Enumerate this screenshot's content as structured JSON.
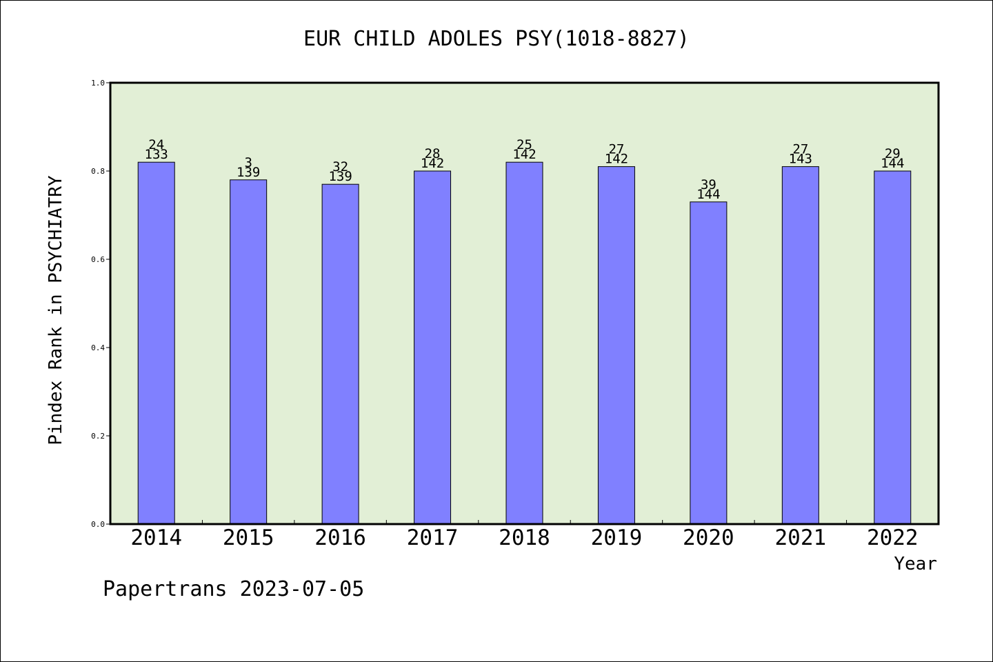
{
  "chart_data": {
    "type": "bar",
    "title": "EUR CHILD ADOLES PSY(1018-8827)",
    "xlabel": "Year",
    "ylabel": "Pindex Rank in PSYCHIATRY",
    "categories": [
      "2014",
      "2015",
      "2016",
      "2017",
      "2018",
      "2019",
      "2020",
      "2021",
      "2022"
    ],
    "values": [
      0.82,
      0.78,
      0.77,
      0.8,
      0.82,
      0.81,
      0.73,
      0.81,
      0.8
    ],
    "rank_labels": [
      "24",
      "3",
      "32",
      "28",
      "25",
      "27",
      "39",
      "27",
      "29"
    ],
    "total_labels": [
      "133",
      "139",
      "139",
      "142",
      "142",
      "142",
      "144",
      "143",
      "144"
    ],
    "ylim": [
      0,
      1.0
    ],
    "yticks": [
      "0.0",
      "0.2",
      "0.4",
      "0.6",
      "0.8",
      "1.0"
    ],
    "grid": false,
    "colors": {
      "bar": "#8080ff",
      "plot_background": "#e2efd6",
      "axis": "#000000"
    }
  },
  "footer": {
    "watermark": "Papertrans 2023-07-05"
  }
}
